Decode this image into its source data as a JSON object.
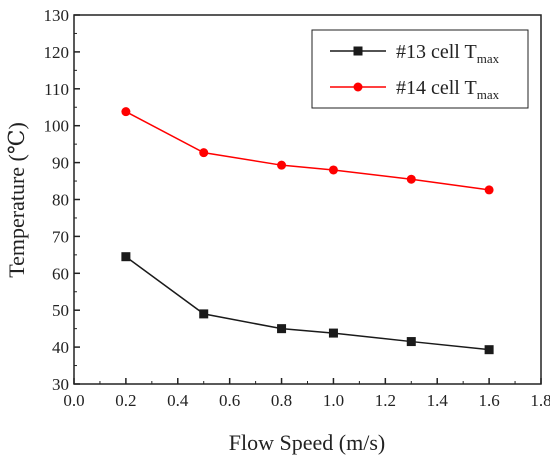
{
  "chart_data": {
    "type": "line",
    "xlabel": "Flow Speed (m/s)",
    "ylabel": "Temperature (℃)",
    "xlim": [
      0.0,
      1.8
    ],
    "ylim": [
      30,
      130
    ],
    "x_ticks": [
      "0.0",
      "0.2",
      "0.4",
      "0.6",
      "0.8",
      "1.0",
      "1.2",
      "1.4",
      "1.6",
      "1.8"
    ],
    "y_ticks": [
      "30",
      "40",
      "50",
      "60",
      "70",
      "80",
      "90",
      "100",
      "110",
      "120",
      "130"
    ],
    "grid": false,
    "legend_position": "top-right",
    "x": [
      0.2,
      0.5,
      0.8,
      1.0,
      1.3,
      1.6
    ],
    "series": [
      {
        "name": "#13 cell T",
        "name_subscript": "max",
        "marker": "square",
        "color": "#1a1a1a",
        "values": [
          64.5,
          49.0,
          45.0,
          43.8,
          41.5,
          39.3
        ]
      },
      {
        "name": "#14 cell T",
        "name_subscript": "max",
        "marker": "circle",
        "color": "#ff0000",
        "values": [
          103.8,
          92.7,
          89.3,
          88.0,
          85.5,
          82.6
        ]
      }
    ]
  }
}
